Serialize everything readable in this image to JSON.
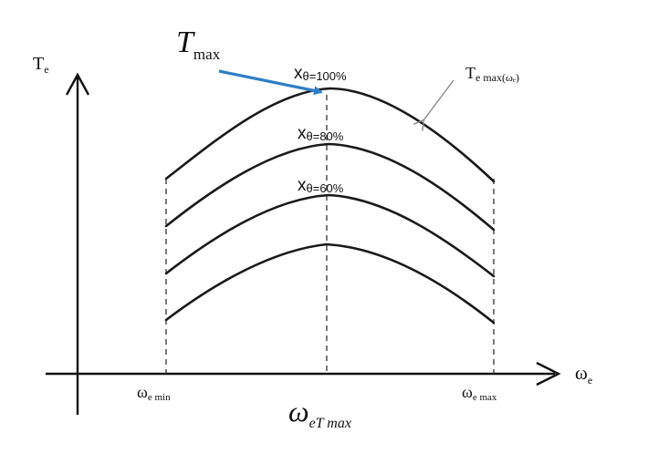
{
  "axes": {
    "y_label_main": "T",
    "y_label_sub": "e",
    "x_label_main": "ω",
    "x_label_sub": "e"
  },
  "ticks": {
    "omega_min_main": "ω",
    "omega_min_sub": "e min",
    "omega_max_main": "ω",
    "omega_max_sub": "e max",
    "omega_tmax_main": "ω",
    "omega_tmax_sub": "eT max"
  },
  "annotations": {
    "tmax_main": "T",
    "tmax_sub": "max",
    "envelope_main": "T",
    "envelope_sub": "e max(ωₑ)",
    "arrow_color": "#2f7fc6"
  },
  "curves": [
    {
      "label_main": "x",
      "label_sub": "θ=100%",
      "level": 1.0
    },
    {
      "label_main": "x",
      "label_sub": "θ=80%",
      "level": 0.8
    },
    {
      "label_main": "x",
      "label_sub": "θ=60%",
      "level": 0.6
    },
    {
      "label_main": "",
      "label_sub": "",
      "level": 0.4
    }
  ]
}
